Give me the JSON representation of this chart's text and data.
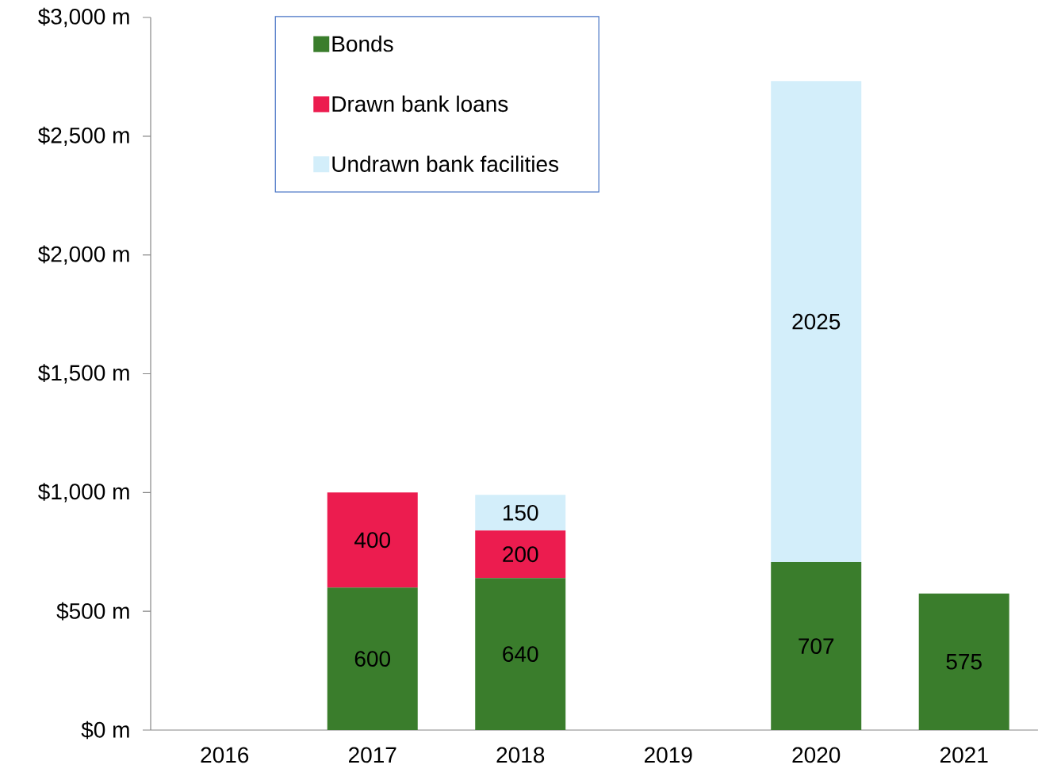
{
  "chart_data": {
    "type": "bar",
    "stacked": true,
    "categories": [
      "2016",
      "2017",
      "2018",
      "2019",
      "2020",
      "2021"
    ],
    "series": [
      {
        "name": "Bonds",
        "color": "#3a7d2c",
        "values": [
          null,
          600,
          640,
          null,
          707,
          575
        ]
      },
      {
        "name": "Drawn bank loans",
        "color": "#ec1c4f",
        "values": [
          null,
          400,
          200,
          null,
          null,
          null
        ]
      },
      {
        "name": "Undrawn bank facilities",
        "color": "#d3eefa",
        "values": [
          null,
          null,
          150,
          null,
          2025,
          null
        ]
      }
    ],
    "ylim": [
      0,
      3000
    ],
    "yticks": [
      {
        "value": 0,
        "label": "$0 m"
      },
      {
        "value": 500,
        "label": "$500 m"
      },
      {
        "value": 1000,
        "label": "$1,000 m"
      },
      {
        "value": 1500,
        "label": "$1,500 m"
      },
      {
        "value": 2000,
        "label": "$2,000 m"
      },
      {
        "value": 2500,
        "label": "$2,500 m"
      },
      {
        "value": 3000,
        "label": "$3,000 m"
      }
    ],
    "data_labels": true,
    "grid": false,
    "legend": "top left"
  }
}
